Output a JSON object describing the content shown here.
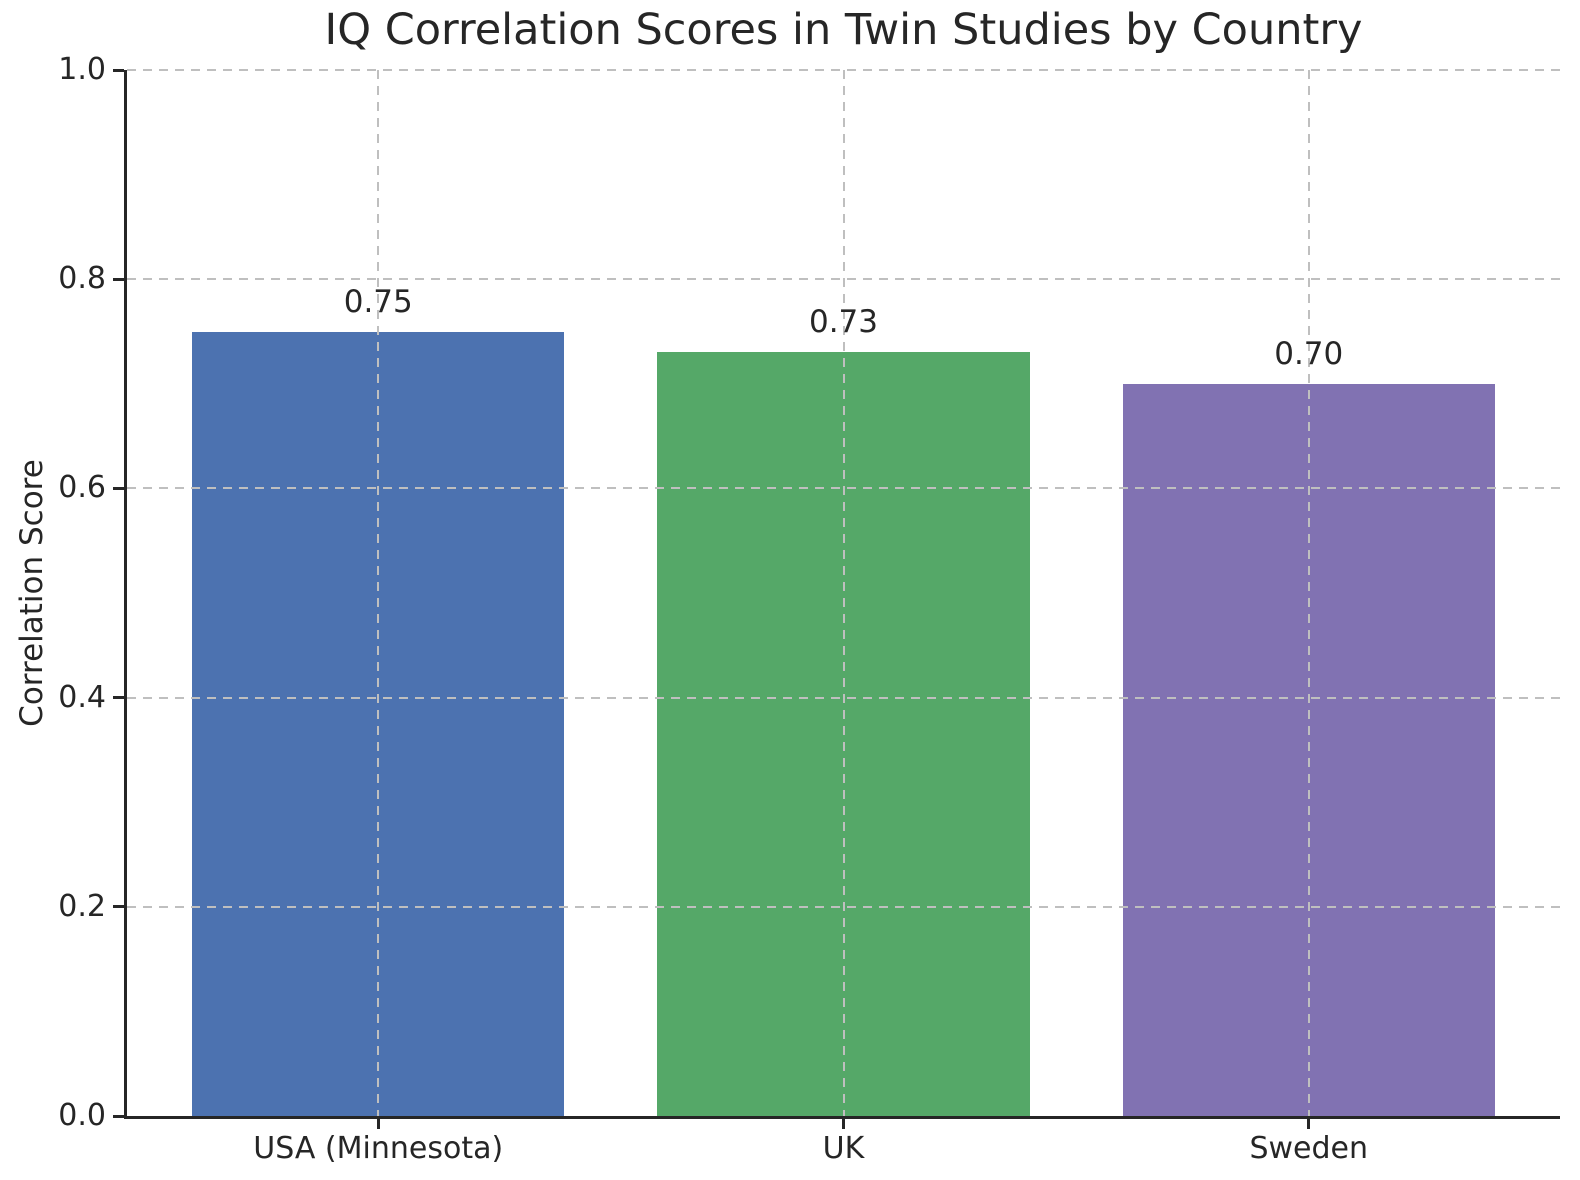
{
  "chart_data": {
    "type": "bar",
    "title": "IQ Correlation Scores in Twin Studies by Country",
    "ylabel": "Correlation Score",
    "xlabel": "",
    "categories": [
      "USA (Minnesota)",
      "UK",
      "Sweden"
    ],
    "values": [
      0.75,
      0.73,
      0.7
    ],
    "bar_labels": [
      "0.75",
      "0.73",
      "0.70"
    ],
    "bar_colors": [
      "#4C72B0",
      "#55A868",
      "#8172B2"
    ],
    "ylim": [
      0.0,
      1.0
    ],
    "yticks": [
      0.0,
      0.2,
      0.4,
      0.6,
      0.8,
      1.0
    ],
    "ytick_labels": [
      "0.0",
      "0.2",
      "0.4",
      "0.6",
      "0.8",
      "1.0"
    ],
    "grid": {
      "visible": true,
      "line_style": "dashed",
      "axes": "both",
      "drawn_above_bars": true
    },
    "legend_position": "none"
  },
  "style_colors": {
    "background": "#ffffff",
    "text": "#262626",
    "spine": "#262626",
    "grid": "#bfbfbf"
  }
}
